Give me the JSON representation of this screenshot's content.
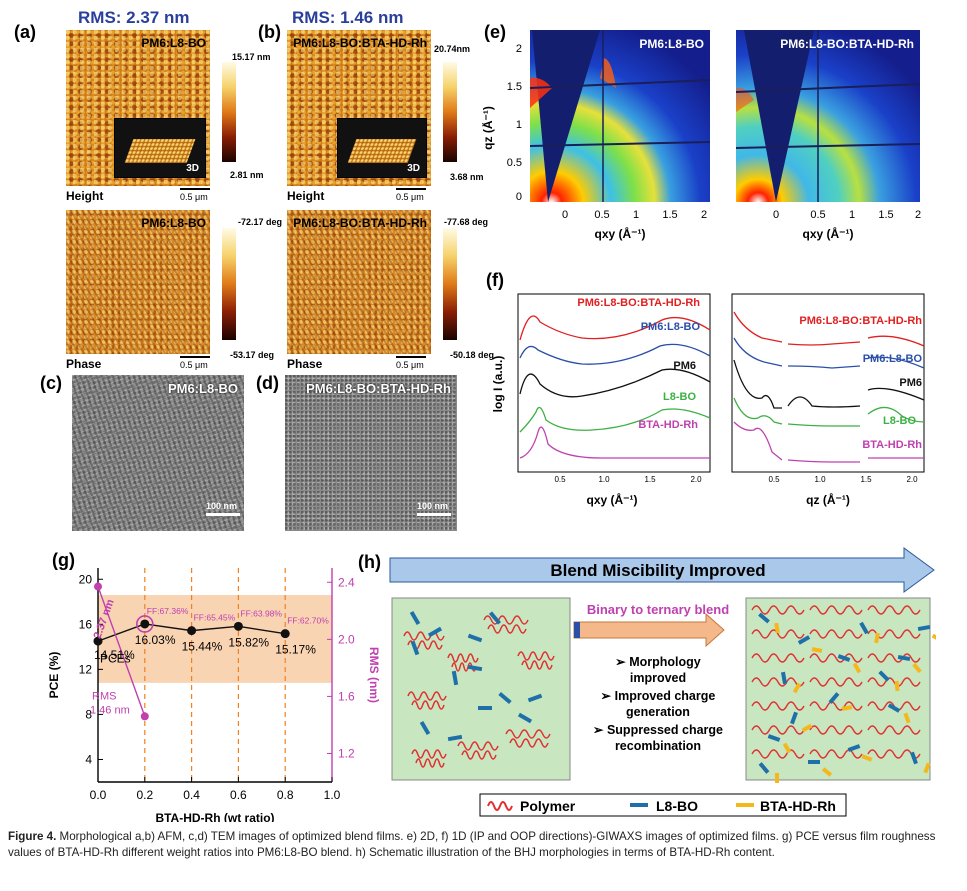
{
  "panel_labels": {
    "a": "(a)",
    "b": "(b)",
    "c": "(c)",
    "d": "(d)",
    "e": "(e)",
    "f": "(f)",
    "g": "(g)",
    "h": "(h)"
  },
  "afm": {
    "a_rms": "RMS: 2.37 nm",
    "b_rms": "RMS: 1.46 nm",
    "a_name": "PM6:L8-BO",
    "b_name": "PM6:L8-BO:BTA-HD-Rh",
    "height": "Height",
    "phase": "Phase",
    "scale": "0.5 μm",
    "inset_3d": "3D",
    "a_height_max": "15.17 nm",
    "a_height_min": "2.81 nm",
    "b_height_max": "20.74nm",
    "b_height_min": "3.68 nm",
    "a_phase_max": "-72.17 deg",
    "a_phase_min": "-53.17 deg",
    "b_phase_max": "-77.68 deg",
    "b_phase_min": "-50.18 deg"
  },
  "tem": {
    "c_name": "PM6:L8-BO",
    "d_name": "PM6:L8-BO:BTA-HD-Rh",
    "scale": "100 nm"
  },
  "giwaxs_2d": {
    "left_name": "PM6:L8-BO",
    "right_name": "PM6:L8-BO:BTA-HD-Rh",
    "ylabel": "qz (Å⁻¹)",
    "xlabel": "qxy (Å⁻¹)",
    "yticks": [
      "2",
      "1.5",
      "1",
      "0.5",
      "0"
    ],
    "xticks": [
      "0",
      "0.5",
      "1",
      "1.5",
      "2"
    ]
  },
  "giwaxs_1d": {
    "ylabel": "log I (a.u.)",
    "xlabel_left": "qxy (Å⁻¹)",
    "xlabel_right": "qz (Å⁻¹)",
    "xticks": [
      "0.5",
      "1.0",
      "1.5",
      "2.0"
    ],
    "series": [
      {
        "name": "PM6:L8-BO:BTA-HD-Rh",
        "color": "#e02020"
      },
      {
        "name": "PM6:L8-BO",
        "color": "#2a4fa8"
      },
      {
        "name": "PM6",
        "color": "#111111"
      },
      {
        "name": "L8-BO",
        "color": "#3cb043"
      },
      {
        "name": "BTA-HD-Rh",
        "color": "#c040b0"
      }
    ]
  },
  "chart_data": {
    "type": "scatter",
    "x": [
      0.0,
      0.2,
      0.4,
      0.6,
      0.8
    ],
    "series": [
      {
        "name": "PCEs",
        "axis": "left",
        "values": [
          14.51,
          16.03,
          15.44,
          15.82,
          15.17
        ],
        "labels": [
          "14.51%",
          "16.03%",
          "15.44%",
          "15.82%",
          "15.17%"
        ],
        "color": "#111111"
      },
      {
        "name": "RMS",
        "axis": "right",
        "x": [
          0.0,
          0.2
        ],
        "values": [
          2.37,
          1.46
        ],
        "labels": [
          "2.37 nm",
          "1.46 nm"
        ],
        "color": "#c040b0"
      }
    ],
    "ff_labels": [
      "FF:67.36%",
      "FF:65.45%",
      "FF:63.98%",
      "FF:62.70%"
    ],
    "xlabel": "BTA-HD-Rh (wt ratio)",
    "ylabel": "PCE (%)",
    "ylabel_right": "RMS (nm)",
    "xlim": [
      0.0,
      1.0
    ],
    "ylim": [
      2,
      21
    ],
    "ylim_right": [
      1.0,
      2.5
    ],
    "xticks": [
      "0.0",
      "0.2",
      "0.4",
      "0.6",
      "0.8",
      "1.0"
    ],
    "yticks": [
      "4",
      "8",
      "12",
      "16",
      "20"
    ],
    "yticks_right": [
      "1.2",
      "1.6",
      "2.0",
      "2.4"
    ],
    "legend_pce": "PCEs",
    "legend_rms": "RMS",
    "rms_top_label": "2.37 nm",
    "rms_bottom_label": "RMS\n1.46 nm"
  },
  "schematic": {
    "banner": "Blend Miscibility Improved",
    "arrow_label": "Binary to ternary blend",
    "bullets": [
      "➢ Morphology improved",
      "➢ Improved charge generation",
      "➢ Suppressed charge recombination"
    ],
    "legend": [
      "Polymer",
      "L8-BO",
      "BTA-HD-Rh"
    ],
    "colors": {
      "polymer": "#e03030",
      "l8bo": "#1f6fa8",
      "bta": "#f5b81c",
      "bg": "#c8e6c0",
      "banner": "#a9c8ea"
    }
  },
  "caption": {
    "fig": "Figure 4.",
    "text": " Morphological a,b) AFM, c,d) TEM images of optimized blend films. e) 2D, f) 1D (IP and OOP directions)-GIWAXS images of optimized films. g) PCE versus film roughness values of BTA-HD-Rh different weight ratios into PM6:L8-BO blend. h) Schematic illustration of the BHJ morphologies in terms of BTA-HD-Rh content."
  }
}
